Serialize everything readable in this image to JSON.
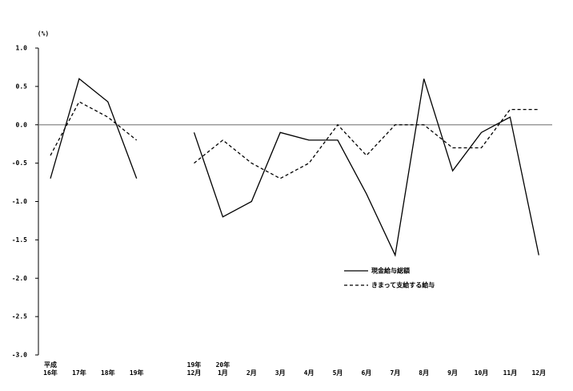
{
  "chart_data": {
    "type": "line",
    "y_unit": "(%)",
    "categories": [
      "平成\n16年",
      "17年",
      "18年",
      "19年",
      null,
      "19年\n12月",
      "20年\n1月",
      "2月",
      "3月",
      "4月",
      "5月",
      "6月",
      "7月",
      "8月",
      "9月",
      "10月",
      "11月",
      "12月"
    ],
    "series": [
      {
        "name": "現金給与総額",
        "color": "#000000",
        "dash": "solid",
        "values": [
          -0.7,
          0.6,
          0.3,
          -0.7,
          null,
          -0.1,
          -1.2,
          -1.0,
          -0.1,
          -0.2,
          -0.2,
          -0.9,
          -1.7,
          0.6,
          -0.6,
          -0.1,
          0.1,
          -1.7
        ]
      },
      {
        "name": "きまって支給する給与",
        "color": "#000000",
        "dash": "dashed",
        "values": [
          -0.4,
          0.3,
          0.1,
          -0.2,
          null,
          -0.5,
          -0.2,
          -0.5,
          -0.7,
          -0.5,
          0.0,
          -0.4,
          0.0,
          0.0,
          -0.3,
          -0.3,
          0.2,
          0.2
        ]
      }
    ],
    "ylim": [
      -3.0,
      1.0
    ],
    "yticks": [
      {
        "value": 1.0,
        "label": "1.0"
      },
      {
        "value": 0.5,
        "label": "0.5"
      },
      {
        "value": 0.0,
        "label": "0.0"
      },
      {
        "value": -0.5,
        "label": "-0.5"
      },
      {
        "value": -1.0,
        "label": "-1.0"
      },
      {
        "value": -1.5,
        "label": "-1.5"
      },
      {
        "value": -2.0,
        "label": "-2.0"
      },
      {
        "value": -2.5,
        "label": "-2.5"
      },
      {
        "value": -3.0,
        "label": "-3.0"
      }
    ],
    "zero_line": true,
    "legend": "lower-right"
  }
}
